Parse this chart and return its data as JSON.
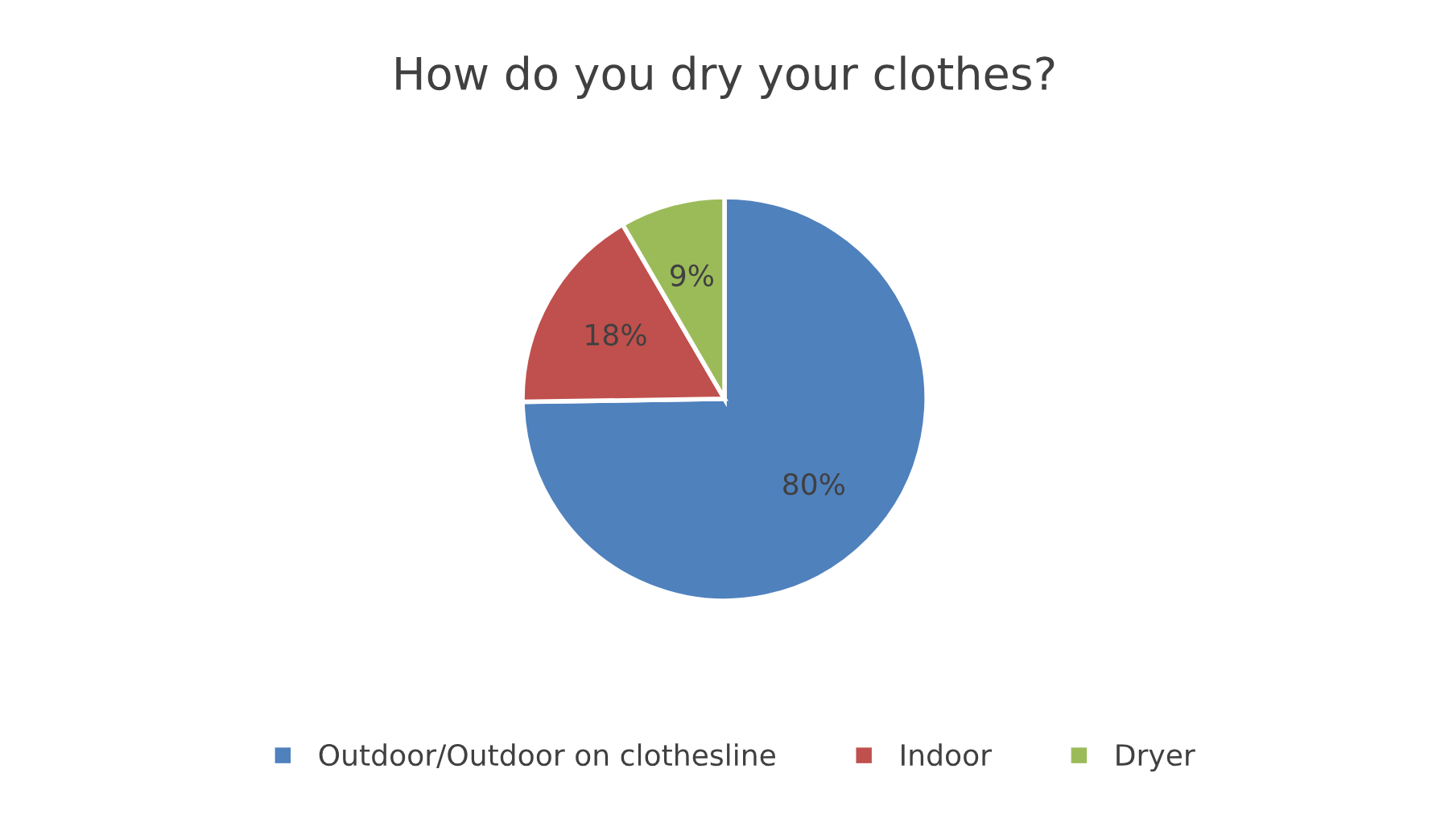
{
  "chart_data": {
    "type": "pie",
    "title": "How do you dry your clothes?",
    "categories": [
      "Outdoor/Outdoor on clothesline",
      "Indoor",
      "Dryer"
    ],
    "values": [
      80,
      18,
      9
    ],
    "colors": [
      "#4f81bd",
      "#c0504d",
      "#9bbb59"
    ],
    "value_labels": [
      "80%",
      "18%",
      "9%"
    ],
    "legend": "bottom"
  }
}
